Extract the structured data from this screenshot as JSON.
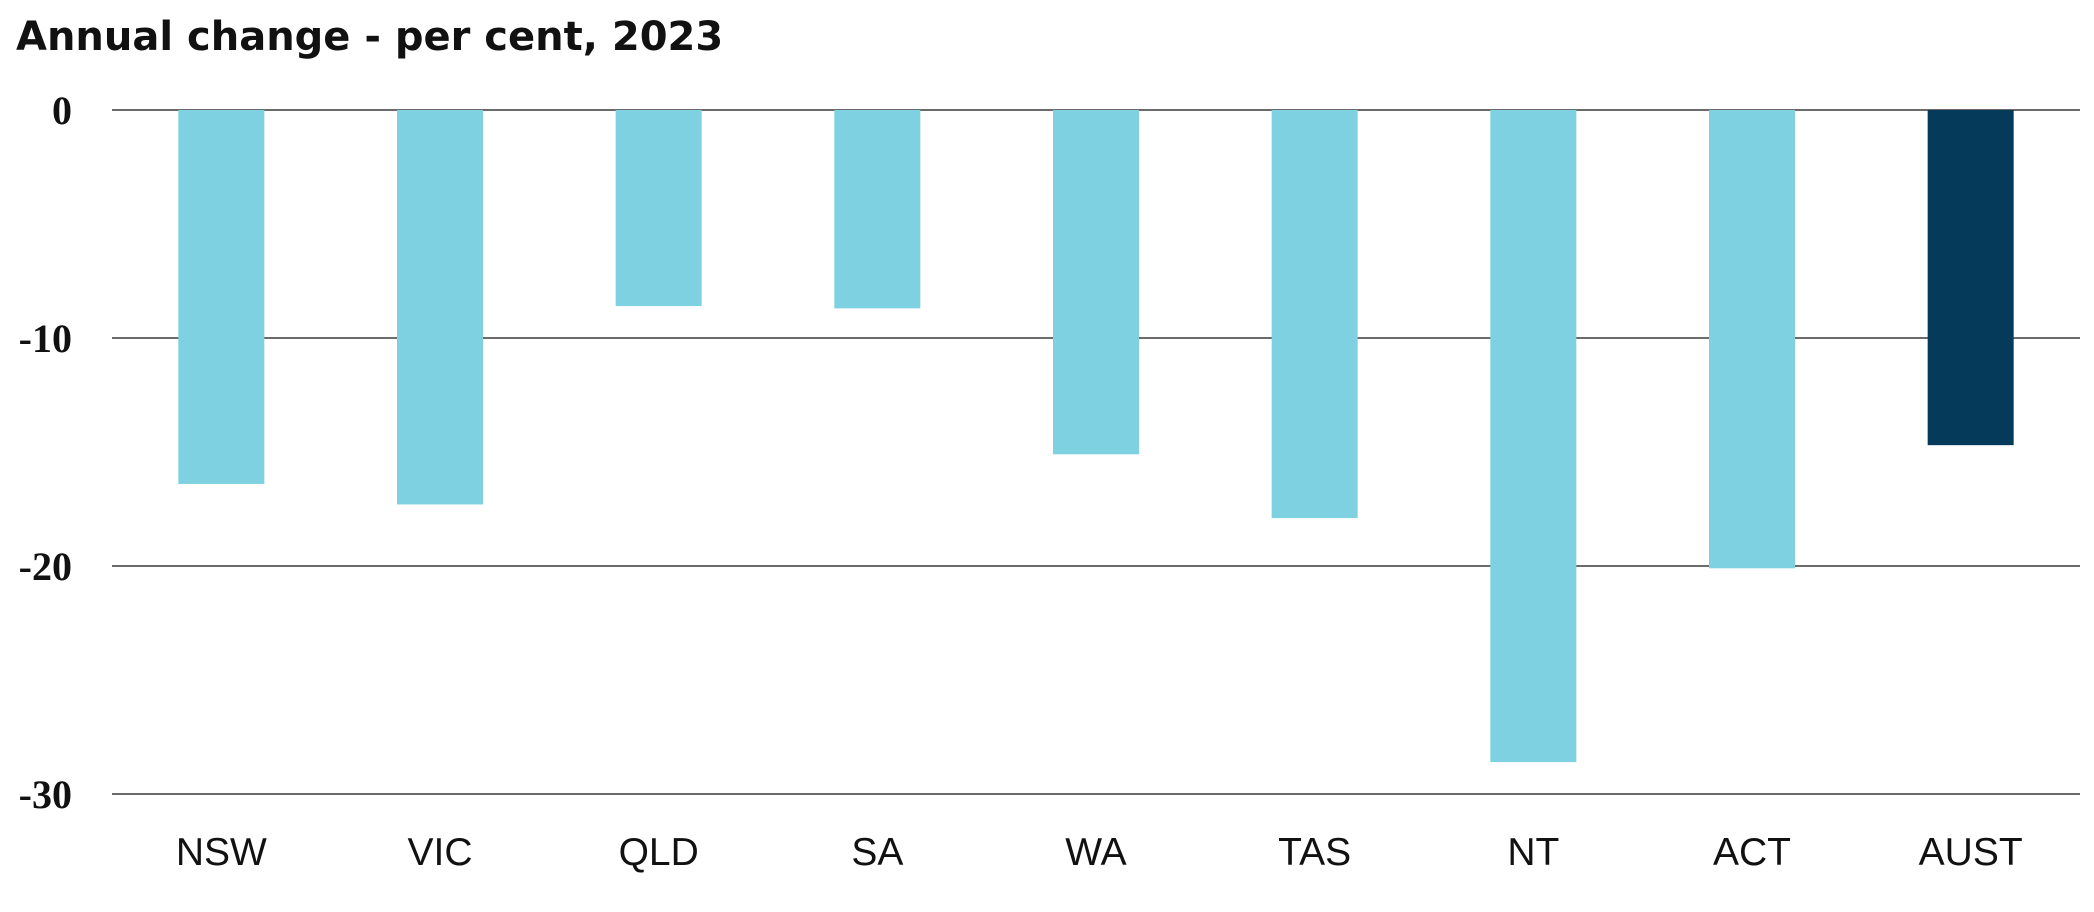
{
  "chart_data": {
    "type": "bar",
    "title": "Annual change - per cent, 2023",
    "xlabel": "",
    "ylabel": "",
    "categories": [
      "NSW",
      "VIC",
      "QLD",
      "SA",
      "WA",
      "TAS",
      "NT",
      "ACT",
      "AUST"
    ],
    "values": [
      -16.4,
      -17.3,
      -8.6,
      -8.7,
      -15.1,
      -17.9,
      -28.6,
      -20.1,
      -14.7
    ],
    "ylim": [
      -30,
      0
    ],
    "yticks": [
      0,
      -10,
      -20,
      -30
    ],
    "grid": true,
    "legend": "none",
    "colors": {
      "states": "#7dd1e1",
      "AUST": "#053a5a"
    }
  }
}
